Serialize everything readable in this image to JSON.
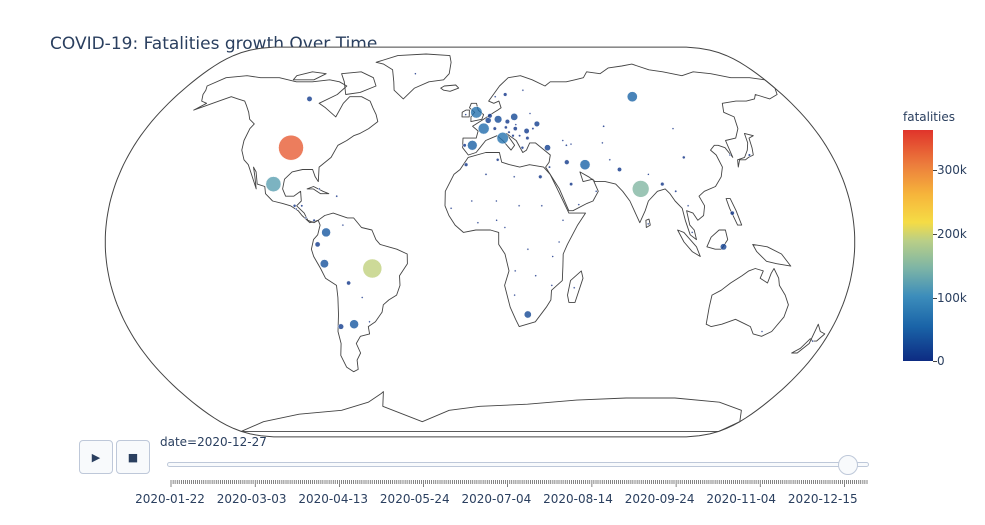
{
  "title": "COVID-19: Fatalities growth Over Time",
  "colorbar": {
    "title": "fatalities",
    "ticks": [
      "300k",
      "200k",
      "100k",
      "0"
    ]
  },
  "controls": {
    "play_icon": "play-icon",
    "stop_icon": "stop-icon"
  },
  "slider": {
    "current_label": "date=2020-12-27",
    "ticks": [
      "2020-01-22",
      "2020-03-03",
      "2020-04-13",
      "2020-05-24",
      "2020-07-04",
      "2020-08-14",
      "2020-09-24",
      "2020-11-04",
      "2020-12-15"
    ],
    "value": 0.97
  },
  "chart_data": {
    "type": "scatter_geo",
    "projection": "natural earth",
    "date": "2020-12-27",
    "colorscale_range": [
      0,
      360000
    ],
    "points": [
      {
        "region": "United States",
        "lon": -98,
        "lat": 39,
        "fatalities": 330000
      },
      {
        "region": "Brazil",
        "lon": -52,
        "lat": -11,
        "fatalities": 191000
      },
      {
        "region": "India",
        "lon": 79,
        "lat": 22,
        "fatalities": 148000
      },
      {
        "region": "Mexico",
        "lon": -102,
        "lat": 24,
        "fatalities": 122000
      },
      {
        "region": "United Kingdom",
        "lon": -2,
        "lat": 54,
        "fatalities": 70000
      },
      {
        "region": "Italy",
        "lon": 12,
        "lat": 43,
        "fatalities": 71000
      },
      {
        "region": "France",
        "lon": 2,
        "lat": 47,
        "fatalities": 63000
      },
      {
        "region": "Russia",
        "lon": 90,
        "lat": 61,
        "fatalities": 55000
      },
      {
        "region": "Spain",
        "lon": -4,
        "lat": 40,
        "fatalities": 50000
      },
      {
        "region": "Iran",
        "lon": 53,
        "lat": 32,
        "fatalities": 54000
      },
      {
        "region": "Colombia",
        "lon": -74,
        "lat": 4,
        "fatalities": 42000
      },
      {
        "region": "Argentina",
        "lon": -64,
        "lat": -34,
        "fatalities": 42000
      },
      {
        "region": "Peru",
        "lon": -75,
        "lat": -9,
        "fatalities": 37000
      },
      {
        "region": "Germany",
        "lon": 10,
        "lat": 51,
        "fatalities": 30000
      },
      {
        "region": "Poland",
        "lon": 19,
        "lat": 52,
        "fatalities": 27000
      },
      {
        "region": "South Africa",
        "lon": 24,
        "lat": -30,
        "fatalities": 27000
      },
      {
        "region": "Indonesia",
        "lon": 117,
        "lat": -2,
        "fatalities": 21000
      },
      {
        "region": "Turkey",
        "lon": 35,
        "lat": 39,
        "fatalities": 20000
      },
      {
        "region": "Ukraine",
        "lon": 31,
        "lat": 49,
        "fatalities": 17000
      },
      {
        "region": "Belgium",
        "lon": 4.5,
        "lat": 50.5,
        "fatalities": 19000
      },
      {
        "region": "Romania",
        "lon": 25,
        "lat": 46,
        "fatalities": 15000
      },
      {
        "region": "Chile",
        "lon": -71,
        "lat": -35,
        "fatalities": 16000
      },
      {
        "region": "Ecuador",
        "lon": -78,
        "lat": -1,
        "fatalities": 14000
      },
      {
        "region": "Canada",
        "lon": -100,
        "lat": 60,
        "fatalities": 15000
      },
      {
        "region": "Philippines",
        "lon": 122,
        "lat": 12,
        "fatalities": 9000
      },
      {
        "region": "Pakistan",
        "lon": 70,
        "lat": 30,
        "fatalities": 10000
      },
      {
        "region": "Bolivia",
        "lon": -64,
        "lat": -17,
        "fatalities": 9000
      },
      {
        "region": "Egypt",
        "lon": 30,
        "lat": 27,
        "fatalities": 7500
      },
      {
        "region": "Hungary",
        "lon": 19,
        "lat": 47,
        "fatalities": 9000
      },
      {
        "region": "Czechia",
        "lon": 15,
        "lat": 50,
        "fatalities": 11000
      },
      {
        "region": "Netherlands",
        "lon": 5.5,
        "lat": 52.5,
        "fatalities": 11000
      },
      {
        "region": "Sweden",
        "lon": 15,
        "lat": 62,
        "fatalities": 8000
      },
      {
        "region": "Bulgaria",
        "lon": 25,
        "lat": 43,
        "fatalities": 7000
      },
      {
        "region": "Iraq",
        "lon": 44,
        "lat": 33,
        "fatalities": 12000
      },
      {
        "region": "Portugal",
        "lon": -8,
        "lat": 40,
        "fatalities": 6500
      },
      {
        "region": "Switzerland",
        "lon": 8,
        "lat": 47,
        "fatalities": 7000
      },
      {
        "region": "Guatemala",
        "lon": -90,
        "lat": 15,
        "fatalities": 4700
      },
      {
        "region": "Panama",
        "lon": -80,
        "lat": 9,
        "fatalities": 3800
      },
      {
        "region": "Saudi Arabia",
        "lon": 45,
        "lat": 24,
        "fatalities": 6200
      },
      {
        "region": "Morocco",
        "lon": -7,
        "lat": 32,
        "fatalities": 7300
      },
      {
        "region": "Bangladesh",
        "lon": 90,
        "lat": 24,
        "fatalities": 7500
      },
      {
        "region": "Japan",
        "lon": 138,
        "lat": 36,
        "fatalities": 3300
      },
      {
        "region": "Kazakhstan",
        "lon": 67,
        "lat": 48,
        "fatalities": 2500
      },
      {
        "region": "Honduras",
        "lon": -86.5,
        "lat": 15,
        "fatalities": 3000
      },
      {
        "region": "Dominican Republic",
        "lon": -70,
        "lat": 19,
        "fatalities": 2400
      },
      {
        "region": "Greenland-area",
        "lon": -42,
        "lat": 72,
        "fatalities": 0
      },
      {
        "region": "Algeria",
        "lon": 3,
        "lat": 28,
        "fatalities": 2700
      },
      {
        "region": "Ethiopia",
        "lon": 40,
        "lat": 9,
        "fatalities": 1900
      },
      {
        "region": "Kenya",
        "lon": 38,
        "lat": 0,
        "fatalities": 1700
      },
      {
        "region": "Nigeria",
        "lon": 8,
        "lat": 9,
        "fatalities": 1200
      },
      {
        "region": "Sudan",
        "lon": 30,
        "lat": 15,
        "fatalities": 1400
      },
      {
        "region": "Australia",
        "lon": 145,
        "lat": -37,
        "fatalities": 900
      },
      {
        "region": "Myanmar",
        "lon": 96,
        "lat": 21,
        "fatalities": 2800
      },
      {
        "region": "Nepal",
        "lon": 84,
        "lat": 28,
        "fatalities": 1800
      },
      {
        "region": "Malaysia",
        "lon": 102,
        "lat": 4,
        "fatalities": 460
      },
      {
        "region": "Uzbekistan",
        "lon": 64,
        "lat": 41,
        "fatalities": 600
      },
      {
        "region": "Afghanistan",
        "lon": 66,
        "lat": 34,
        "fatalities": 2100
      },
      {
        "region": "Cuba",
        "lon": -79,
        "lat": 22,
        "fatalities": 140
      },
      {
        "region": "Venezuela",
        "lon": -66,
        "lat": 7,
        "fatalities": 1000
      },
      {
        "region": "Paraguay",
        "lon": -58,
        "lat": -23,
        "fatalities": 2200
      },
      {
        "region": "Zambia",
        "lon": 27,
        "lat": -14,
        "fatalities": 380
      },
      {
        "region": "Madagascar",
        "lon": 46,
        "lat": -19,
        "fatalities": 260
      },
      {
        "region": "Cameroon",
        "lon": 12,
        "lat": 6,
        "fatalities": 440
      },
      {
        "region": "Ghana",
        "lon": -1,
        "lat": 8,
        "fatalities": 330
      },
      {
        "region": "Senegal",
        "lon": -14,
        "lat": 14,
        "fatalities": 410
      },
      {
        "region": "Mali",
        "lon": -4,
        "lat": 17,
        "fatalities": 250
      },
      {
        "region": "Congo DR",
        "lon": 23,
        "lat": -3,
        "fatalities": 600
      },
      {
        "region": "Angola",
        "lon": 17,
        "lat": -12,
        "fatalities": 400
      },
      {
        "region": "Mozambique",
        "lon": 35,
        "lat": -18,
        "fatalities": 160
      },
      {
        "region": "Tanzania",
        "lon": 35,
        "lat": -6,
        "fatalities": 21
      },
      {
        "region": "Namibia",
        "lon": 17,
        "lat": -22,
        "fatalities": 200
      },
      {
        "region": "Libya",
        "lon": 17,
        "lat": 27,
        "fatalities": 1500
      },
      {
        "region": "Chad",
        "lon": 19,
        "lat": 15,
        "fatalities": 100
      },
      {
        "region": "Niger",
        "lon": 8,
        "lat": 17,
        "fatalities": 90
      },
      {
        "region": "Mongolia",
        "lon": 104,
        "lat": 47,
        "fatalities": 1
      },
      {
        "region": "China",
        "lon": 104,
        "lat": 35,
        "fatalities": 4700
      },
      {
        "region": "South Korea",
        "lon": 128,
        "lat": 36,
        "fatalities": 850
      },
      {
        "region": "Thailand",
        "lon": 101,
        "lat": 15,
        "fatalities": 60
      },
      {
        "region": "Sri Lanka",
        "lon": 81,
        "lat": 7.5,
        "fatalities": 180
      },
      {
        "region": "Yemen",
        "lon": 48,
        "lat": 15.5,
        "fatalities": 610
      },
      {
        "region": "Oman",
        "lon": 57,
        "lat": 21,
        "fatalities": 1400
      },
      {
        "region": "Israel",
        "lon": 35,
        "lat": 31,
        "fatalities": 3200
      },
      {
        "region": "Greece",
        "lon": 22,
        "lat": 39,
        "fatalities": 4700
      },
      {
        "region": "Austria",
        "lon": 14,
        "lat": 47.5,
        "fatalities": 5600
      },
      {
        "region": "Ireland",
        "lon": -8,
        "lat": 53,
        "fatalities": 2200
      },
      {
        "region": "Finland",
        "lon": 26,
        "lat": 64,
        "fatalities": 550
      },
      {
        "region": "Norway",
        "lon": 9,
        "lat": 61,
        "fatalities": 430
      },
      {
        "region": "Belarus",
        "lon": 28,
        "lat": 53.5,
        "fatalities": 1400
      },
      {
        "region": "Serbia",
        "lon": 21,
        "lat": 44,
        "fatalities": 3000
      },
      {
        "region": "Bosnia",
        "lon": 17.5,
        "lat": 44,
        "fatalities": 3900
      },
      {
        "region": "Slovakia",
        "lon": 19.5,
        "lat": 48.7,
        "fatalities": 2000
      },
      {
        "region": "Croatia",
        "lon": 15.5,
        "lat": 45.5,
        "fatalities": 3700
      },
      {
        "region": "Moldova",
        "lon": 28.5,
        "lat": 47,
        "fatalities": 2800
      },
      {
        "region": "Armenia",
        "lon": 45,
        "lat": 40,
        "fatalities": 2700
      },
      {
        "region": "Georgia",
        "lon": 43.5,
        "lat": 42,
        "fatalities": 2300
      },
      {
        "region": "Azerbaijan",
        "lon": 47.5,
        "lat": 40.5,
        "fatalities": 2300
      },
      {
        "region": "Tunisia",
        "lon": 9,
        "lat": 34,
        "fatalities": 4500
      },
      {
        "region": "Costa Rica",
        "lon": -84,
        "lat": 10,
        "fatalities": 2100
      },
      {
        "region": "El Salvador",
        "lon": -89,
        "lat": 13.7,
        "fatalities": 1300
      },
      {
        "region": "Uruguay",
        "lon": -56,
        "lat": -33,
        "fatalities": 170
      },
      {
        "region": "New Zealand",
        "lon": 174,
        "lat": -41,
        "fatalities": 25
      }
    ]
  }
}
